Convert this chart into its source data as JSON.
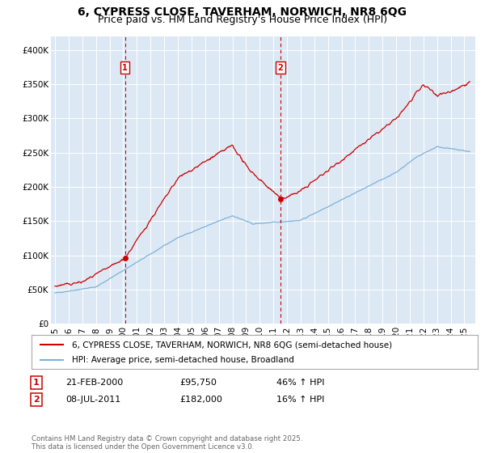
{
  "title1": "6, CYPRESS CLOSE, TAVERHAM, NORWICH, NR8 6QG",
  "title2": "Price paid vs. HM Land Registry's House Price Index (HPI)",
  "ylabel_ticks": [
    "£0",
    "£50K",
    "£100K",
    "£150K",
    "£200K",
    "£250K",
    "£300K",
    "£350K",
    "£400K"
  ],
  "ytick_vals": [
    0,
    50000,
    100000,
    150000,
    200000,
    250000,
    300000,
    350000,
    400000
  ],
  "ylim": [
    0,
    420000
  ],
  "xlim_start": 1994.7,
  "xlim_end": 2025.8,
  "sale1_x": 2000.13,
  "sale1_y": 95750,
  "sale2_x": 2011.52,
  "sale2_y": 182000,
  "red_color": "#cc0000",
  "blue_color": "#7fb0d8",
  "plot_bg": "#dce9f5",
  "legend_line1": "6, CYPRESS CLOSE, TAVERHAM, NORWICH, NR8 6QG (semi-detached house)",
  "legend_line2": "HPI: Average price, semi-detached house, Broadland",
  "annotation1_date": "21-FEB-2000",
  "annotation1_price": "£95,750",
  "annotation1_hpi": "46% ↑ HPI",
  "annotation2_date": "08-JUL-2011",
  "annotation2_price": "£182,000",
  "annotation2_hpi": "16% ↑ HPI",
  "footer": "Contains HM Land Registry data © Crown copyright and database right 2025.\nThis data is licensed under the Open Government Licence v3.0.",
  "title_fontsize": 10,
  "subtitle_fontsize": 9,
  "tick_fontsize": 7.5,
  "annot_fontsize": 8
}
